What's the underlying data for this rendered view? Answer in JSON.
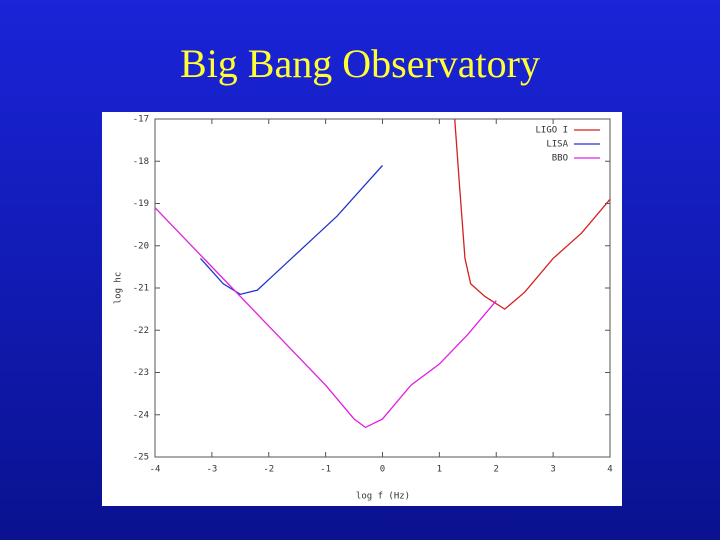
{
  "chart_data": {
    "type": "line",
    "title": "Big Bang Observatory",
    "xlabel": "log f (Hz)",
    "ylabel": "log hc",
    "xlim": [
      -4,
      4
    ],
    "xticks": [
      -4,
      -3,
      -2,
      -1,
      0,
      1,
      2,
      3,
      4
    ],
    "ylim": [
      -25,
      -17
    ],
    "yticks": [
      -17,
      -18,
      -19,
      -20,
      -21,
      -22,
      -23,
      -24,
      -25
    ],
    "legend": "upper right",
    "series": [
      {
        "name": "LIGO I",
        "color": "#d42020",
        "x": [
          1.27,
          1.35,
          1.45,
          1.55,
          1.8,
          2.15,
          2.5,
          3,
          3.5,
          4
        ],
        "values": [
          -17,
          -18.5,
          -20.3,
          -20.9,
          -21.2,
          -21.5,
          -21.1,
          -20.3,
          -19.7,
          -18.9
        ]
      },
      {
        "name": "LISA",
        "color": "#2233cc",
        "x": [
          -3.2,
          -3,
          -2.8,
          -2.5,
          -2.2,
          -2,
          -1.6,
          -1.2,
          -0.8,
          -0.4,
          0
        ],
        "values": [
          -20.3,
          -20.6,
          -20.9,
          -21.15,
          -21.05,
          -20.8,
          -20.3,
          -19.8,
          -19.3,
          -18.7,
          -18.1
        ]
      },
      {
        "name": "BBO",
        "color": "#e020e0",
        "x": [
          -4,
          -3,
          -2,
          -1,
          -0.5,
          -0.3,
          0,
          0.5,
          1,
          1.5,
          2
        ],
        "values": [
          -19.1,
          -20.5,
          -21.9,
          -23.3,
          -24.1,
          -24.3,
          -24.1,
          -23.3,
          -22.8,
          -22.1,
          -21.3
        ]
      }
    ]
  }
}
